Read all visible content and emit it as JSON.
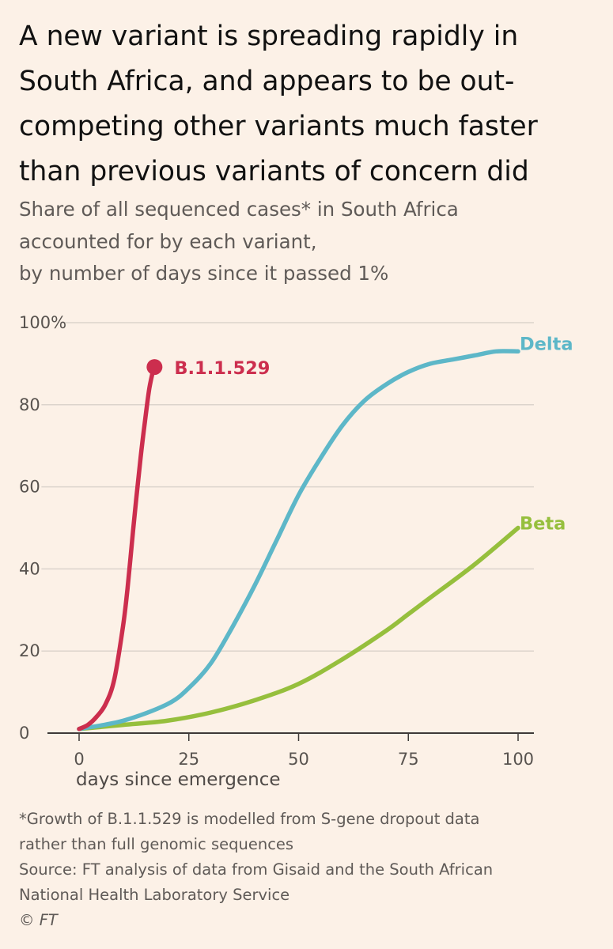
{
  "title_lines": [
    "A new variant is spreading rapidly in",
    "South Africa, and appears to be out-",
    "competing other variants much faster",
    "than previous variants of concern did"
  ],
  "subtitle_lines": [
    "Share of all sequenced cases* in South Africa",
    "accounted for by each variant,",
    "by number of days since it passed 1%"
  ],
  "notes": {
    "footnote_lines": [
      "*Growth of B.1.1.529 is modelled from S-gene dropout data",
      "rather than full genomic sequences"
    ],
    "source_lines": [
      "Source: FT analysis of data from Gisaid and the South African",
      "National Health Laboratory Service"
    ],
    "credit": "© FT"
  },
  "chart_data": {
    "type": "line",
    "xlabel": "days since emergence",
    "ylabel": "",
    "xlim": [
      0,
      100
    ],
    "ylim": [
      0,
      100
    ],
    "x_ticks": [
      0,
      25,
      50,
      75,
      100
    ],
    "x_tick_labels": [
      "0",
      "25",
      "50",
      "75",
      "100"
    ],
    "y_ticks": [
      0,
      20,
      40,
      60,
      80,
      100
    ],
    "y_tick_labels": [
      "0",
      "20",
      "40",
      "60",
      "80",
      "100%"
    ],
    "grid": "horizontal",
    "series": [
      {
        "name": "B.1.1.529",
        "color": "#cc2e4e",
        "end_marker": true,
        "x": [
          0,
          2,
          4,
          6,
          8,
          10,
          11,
          12,
          13,
          14,
          15,
          16,
          17
        ],
        "y": [
          1,
          2,
          4,
          7,
          13,
          26,
          35,
          46,
          57,
          67,
          76,
          84,
          89
        ]
      },
      {
        "name": "Delta",
        "color": "#5db7c8",
        "x": [
          0,
          10,
          20,
          25,
          30,
          35,
          40,
          45,
          50,
          55,
          60,
          65,
          70,
          75,
          80,
          85,
          90,
          95,
          100
        ],
        "y": [
          1,
          3,
          7,
          11,
          17,
          26,
          36,
          47,
          58,
          67,
          75,
          81,
          85,
          88,
          90,
          91,
          92,
          93,
          93
        ]
      },
      {
        "name": "Beta",
        "color": "#96bf3d",
        "x": [
          0,
          10,
          20,
          30,
          40,
          50,
          60,
          70,
          75,
          80,
          90,
          100
        ],
        "y": [
          1,
          2,
          3,
          5,
          8,
          12,
          18,
          25,
          29,
          33,
          41,
          50
        ]
      }
    ]
  }
}
